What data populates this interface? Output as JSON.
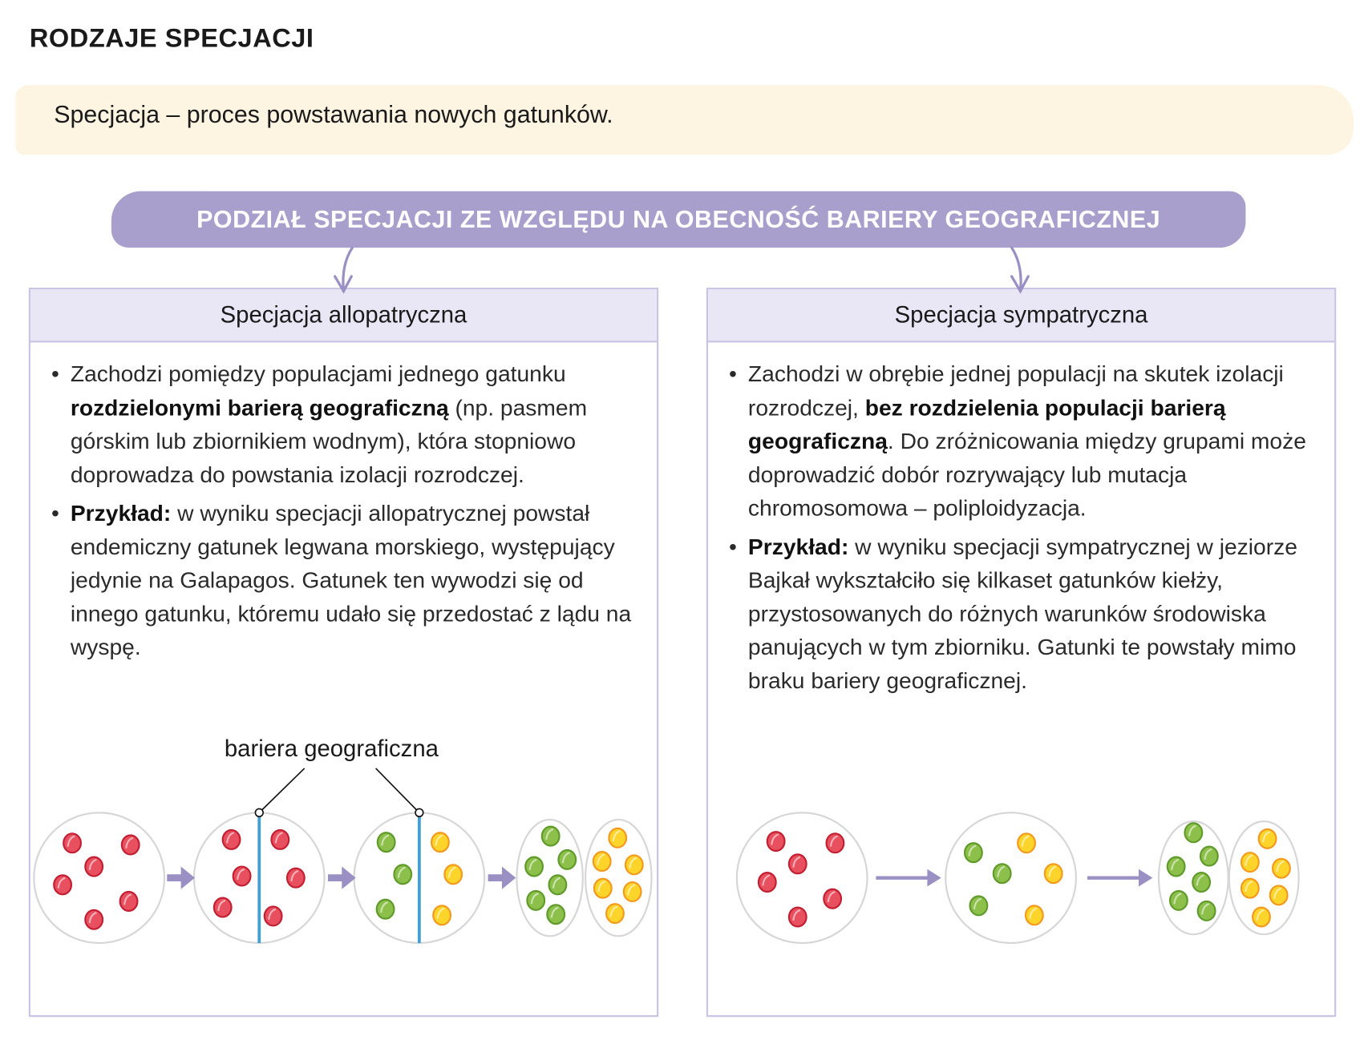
{
  "title": "RODZAJE SPECJACJI",
  "definition": {
    "term": "Specjacja",
    "text": " – proces powstawania nowych gatunków."
  },
  "division_heading": "PODZIAŁ SPECJACJI ZE WZGLĘDU NA OBECNOŚĆ BARIERY GEOGRAFICZNEJ",
  "allopatric": {
    "heading": "Specjacja allopatryczna",
    "bullet1": {
      "a": "Zachodzi pomiędzy populacjami jednego gatunku ",
      "b": "rozdzielonymi barierą geograficzną",
      "c": " (np. pasmem górskim lub zbiornikiem wodnym), która stopniowo doprowadza do powstania izolacji rozrodczej."
    },
    "bullet2": {
      "a": "Przykład:",
      "b": " w wyniku specjacji allopatrycznej powstał endemiczny gatunek legwana morskiego, występujący jedynie na Galapagos. Gatunek ten wywodzi się od innego gatunku, któremu udało się przedostać z lądu na wyspę."
    },
    "barrier_label": "bariera geograficzna"
  },
  "sympatric": {
    "heading": "Specjacja sympatryczna",
    "bullet1": {
      "a": "Zachodzi w obrębie jednej populacji na skutek izolacji rozrodczej, ",
      "b": "bez rozdzielenia populacji barierą geograficzną",
      "c": ". Do zróżnicowania między grupami może doprowadzić dobór rozrywający lub mutacja chromosomowa – poliploidyzacja."
    },
    "bullet2": {
      "a": "Przykład:",
      "b": " w wyniku specjacji sympatrycznej w jeziorze Bajkał wykształciło się kilkaset gatunków kiełży, przystosowanych do różnych warunków środowiska panujących w tym zbiorniku. Gatunki te powstały mimo braku bariery geograficznej."
    }
  },
  "colors": {
    "accent": "#a99fcc",
    "red": "#e8505f",
    "green": "#8cc04a",
    "yellow": "#fcd42a",
    "barrier": "#3fa0d8"
  }
}
